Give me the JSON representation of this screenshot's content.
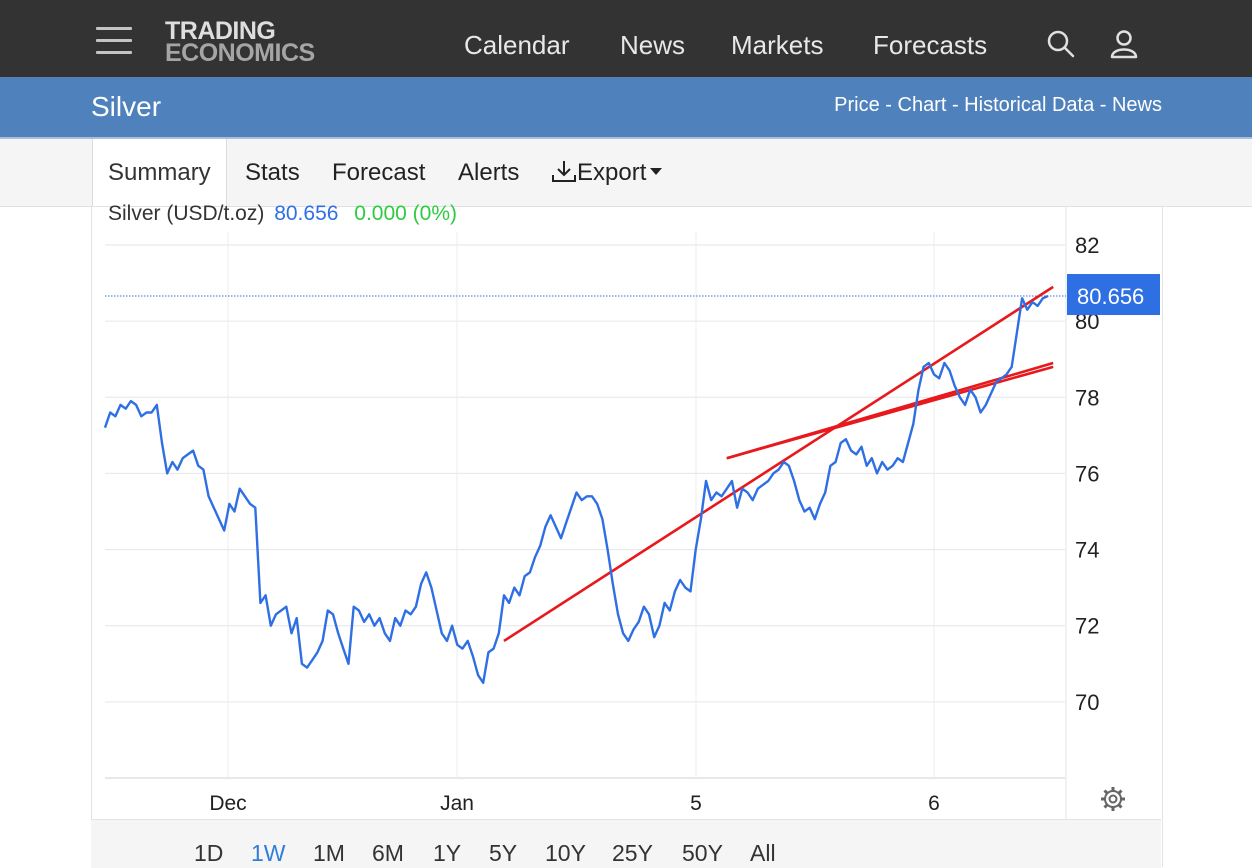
{
  "header": {
    "logo_line1": "TRADING",
    "logo_line2": "ECONOMICS",
    "nav": [
      "Calendar",
      "News",
      "Markets",
      "Forecasts"
    ],
    "icons": [
      "menu-icon",
      "search-icon",
      "user-icon"
    ]
  },
  "subheader": {
    "title": "Silver",
    "links": "Price - Chart - Historical Data - News"
  },
  "tabs": [
    "Summary",
    "Stats",
    "Forecast",
    "Alerts",
    "Export"
  ],
  "active_tab": "Summary",
  "legend": {
    "symbol": "Silver (USD/t.oz)",
    "price": "80.656",
    "change": "0.000 (0%)"
  },
  "ranges": [
    "1D",
    "1W",
    "1M",
    "6M",
    "1Y",
    "5Y",
    "10Y",
    "25Y",
    "50Y",
    "All"
  ],
  "active_range": "1W",
  "colors": {
    "header_bg": "#333333",
    "subheader_bg": "#4f81bd",
    "line": "#2f6fe4",
    "channel": "#e8191c",
    "change_positive": "#2ecc40"
  },
  "chart_data": {
    "type": "line",
    "title": "",
    "xlabel": "",
    "ylabel": "",
    "x_ticks": [
      "Dec",
      "Jan",
      "5",
      "6"
    ],
    "y_ticks": [
      70,
      72,
      74,
      76,
      78,
      80,
      82
    ],
    "ylim": [
      68,
      82.9
    ],
    "last_price_label": "80.656",
    "grid": true,
    "series": [
      {
        "values": [
          77.2,
          77.6,
          77.5,
          77.8,
          77.7,
          77.9,
          77.8,
          77.5,
          77.6,
          77.6,
          77.8,
          76.8,
          76.0,
          76.3,
          76.1,
          76.4,
          76.5,
          76.6,
          76.2,
          76.1,
          75.4,
          75.1,
          74.8,
          74.5,
          75.2,
          75.0,
          75.6,
          75.4,
          75.2,
          75.1,
          72.6,
          72.8,
          72.0,
          72.3,
          72.4,
          72.5,
          71.8,
          72.2,
          71.0,
          70.9,
          71.1,
          71.3,
          71.6,
          72.4,
          72.3,
          71.8,
          71.4,
          71.0,
          72.5,
          72.4,
          72.1,
          72.3,
          72.0,
          72.2,
          71.8,
          71.6,
          72.2,
          72.0,
          72.4,
          72.3,
          72.5,
          73.1,
          73.4,
          73.0,
          72.4,
          71.8,
          71.6,
          72.0,
          71.5,
          71.4,
          71.6,
          71.2,
          70.7,
          70.5,
          71.3,
          71.4,
          71.8,
          72.8,
          72.6,
          73.0,
          72.8,
          73.3,
          73.4,
          73.8,
          74.1,
          74.6,
          74.9,
          74.6,
          74.3,
          74.7,
          75.1,
          75.5,
          75.3,
          75.4,
          75.4,
          75.2,
          74.8,
          74.0,
          73.1,
          72.3,
          71.8,
          71.6,
          71.9,
          72.1,
          72.5,
          72.3,
          71.7,
          72.0,
          72.6,
          72.4,
          72.9,
          73.2,
          73.0,
          72.9,
          74.0,
          74.8,
          75.8,
          75.3,
          75.5,
          75.4,
          75.6,
          75.8,
          75.1,
          75.6,
          75.5,
          75.3,
          75.6,
          75.7,
          75.8,
          76.0,
          76.1,
          76.3,
          76.2,
          75.8,
          75.3,
          75.0,
          75.1,
          74.8,
          75.2,
          75.5,
          76.2,
          76.3,
          76.8,
          76.9,
          76.6,
          76.5,
          76.7,
          76.2,
          76.4,
          76.0,
          76.3,
          76.1,
          76.2,
          76.4,
          76.3,
          76.8,
          77.3,
          78.2,
          78.8,
          78.9,
          78.6,
          78.5,
          78.9,
          78.7,
          78.3,
          78.0,
          77.8,
          78.2,
          78.0,
          77.6,
          77.8,
          78.1,
          78.4,
          78.5,
          78.6,
          78.8,
          79.7,
          80.6,
          80.3,
          80.5,
          80.4,
          80.6,
          80.66
        ]
      }
    ],
    "annotations": [
      {
        "type": "trend-line",
        "from": [
          77,
          71.6
        ],
        "to": [
          183,
          80.9
        ]
      },
      {
        "type": "trend-line",
        "from": [
          120,
          76.4
        ],
        "to": [
          183,
          78.9
        ]
      },
      {
        "type": "trend-line",
        "from": [
          120,
          76.4
        ],
        "to": [
          183,
          78.8
        ]
      }
    ]
  }
}
